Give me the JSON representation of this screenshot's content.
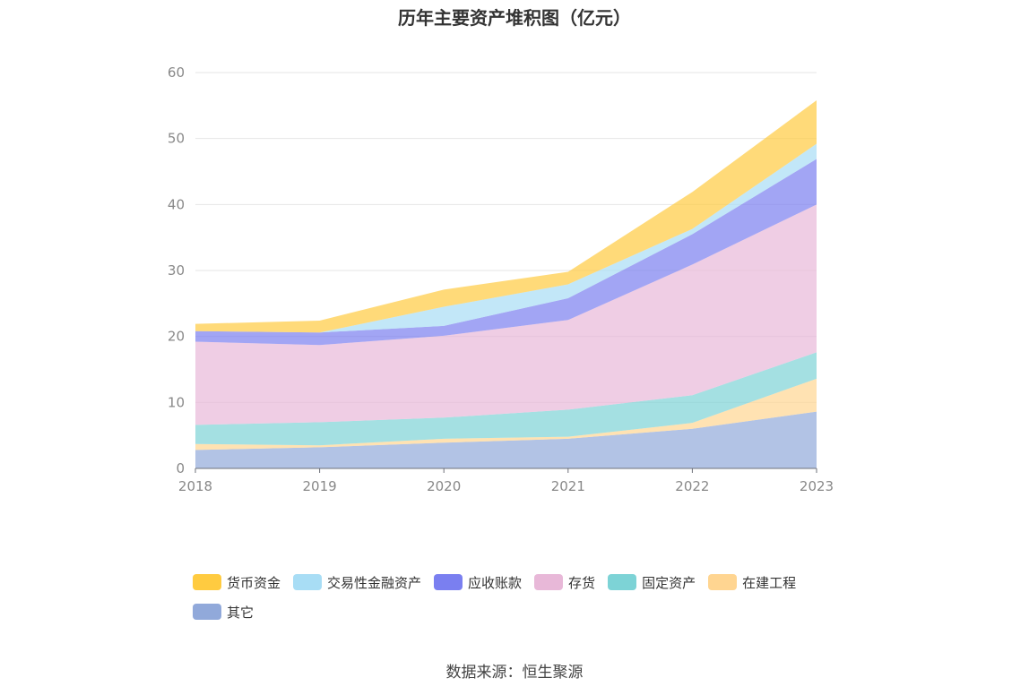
{
  "chart_data": {
    "type": "area",
    "title": "历年主要资产堆积图（亿元）",
    "x": [
      "2018",
      "2019",
      "2020",
      "2021",
      "2022",
      "2023"
    ],
    "ylim": [
      0,
      60
    ],
    "yticks": [
      0,
      10,
      20,
      30,
      40,
      50,
      60
    ],
    "grid": true,
    "stacked": true,
    "legend_position": "bottom",
    "series": [
      {
        "name": "其它",
        "color": "#91A9DA",
        "values": [
          2.8,
          3.2,
          3.9,
          4.5,
          6.0,
          8.6
        ]
      },
      {
        "name": "在建工程",
        "color": "#FFD591",
        "values": [
          0.9,
          0.3,
          0.6,
          0.3,
          0.9,
          5.0
        ]
      },
      {
        "name": "固定资产",
        "color": "#7DD3D6",
        "values": [
          2.9,
          3.5,
          3.2,
          4.1,
          4.2,
          4.0
        ]
      },
      {
        "name": "存货",
        "color": "#E8B8D8",
        "values": [
          12.6,
          11.7,
          12.4,
          13.6,
          19.8,
          22.4
        ]
      },
      {
        "name": "应收账款",
        "color": "#7A7FF0",
        "values": [
          1.6,
          1.9,
          1.5,
          3.3,
          4.6,
          6.9
        ]
      },
      {
        "name": "交易性金融资产",
        "color": "#A8DDF5",
        "values": [
          0,
          0,
          2.9,
          2.1,
          0.8,
          2.3
        ]
      },
      {
        "name": "货币资金",
        "color": "#FFCB40",
        "values": [
          1.1,
          1.8,
          2.6,
          1.9,
          5.6,
          6.6
        ]
      }
    ],
    "legend_order": [
      "货币资金",
      "交易性金融资产",
      "应收账款",
      "存货",
      "固定资产",
      "在建工程",
      "其它"
    ],
    "source": "数据来源：恒生聚源"
  }
}
